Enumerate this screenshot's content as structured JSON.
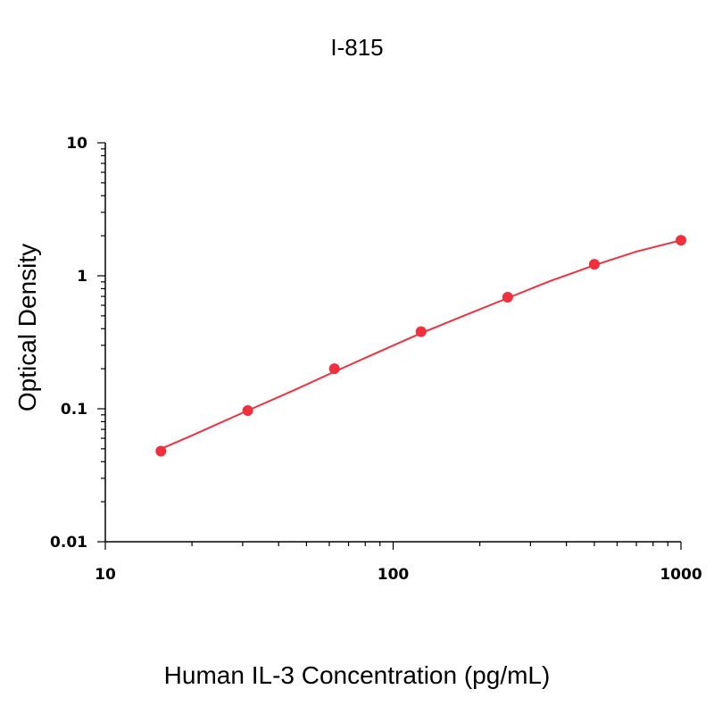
{
  "chart_data": {
    "type": "scatter",
    "title": "I-815",
    "xlabel": "Human IL-3 Concentration (pg/mL)",
    "ylabel": "Optical Density",
    "x_scale": "log",
    "y_scale": "log",
    "xlim": [
      10,
      1000
    ],
    "ylim": [
      0.01,
      10
    ],
    "x_ticks": [
      {
        "value": 10,
        "label": "10"
      },
      {
        "value": 100,
        "label": "100"
      },
      {
        "value": 1000,
        "label": "1000"
      }
    ],
    "y_ticks": [
      {
        "value": 0.01,
        "label": "0.01"
      },
      {
        "value": 0.1,
        "label": "0.1"
      },
      {
        "value": 1,
        "label": "1"
      },
      {
        "value": 10,
        "label": "10"
      }
    ],
    "grid": false,
    "color": "#f0303c",
    "series": [
      {
        "x": [
          15.6,
          31.25,
          62.5,
          125,
          250,
          500,
          1000
        ],
        "y": [
          0.048,
          0.097,
          0.2,
          0.38,
          0.69,
          1.22,
          1.85
        ]
      }
    ],
    "curve": {
      "x": [
        15.6,
        20,
        31.25,
        45,
        62.5,
        90,
        125,
        180,
        250,
        350,
        500,
        700,
        1000
      ],
      "y": [
        0.05,
        0.063,
        0.097,
        0.137,
        0.19,
        0.27,
        0.37,
        0.51,
        0.68,
        0.91,
        1.2,
        1.52,
        1.85
      ]
    }
  }
}
